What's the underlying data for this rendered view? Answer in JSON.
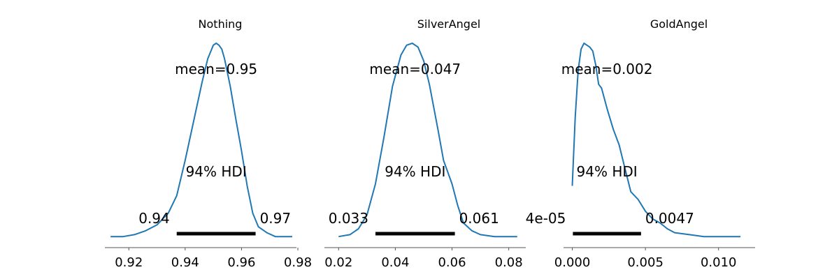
{
  "colors": {
    "curve": "#1f77b4",
    "hdi_bar": "#000000",
    "axis": "#555555"
  },
  "chart_data": [
    {
      "type": "line",
      "title": "Nothing",
      "mean_label": "mean=0.95",
      "hdi_label": "94% HDI",
      "hdi_low": 0.937,
      "hdi_high": 0.965,
      "hdi_low_label": "0.94",
      "hdi_high_label": "0.97",
      "xlim": [
        0.9115,
        0.9795
      ],
      "ticks": [
        0.92,
        0.94,
        0.96,
        0.98
      ],
      "tick_labels": [
        "0.92",
        "0.94",
        "0.96",
        "0.98"
      ],
      "density_x": [
        0.9135,
        0.918,
        0.922,
        0.926,
        0.93,
        0.934,
        0.937,
        0.94,
        0.943,
        0.946,
        0.948,
        0.95,
        0.951,
        0.952,
        0.953,
        0.954,
        0.956,
        0.958,
        0.96,
        0.962,
        0.964,
        0.966,
        0.969,
        0.972,
        0.975,
        0.978
      ],
      "density_y": [
        0.01,
        0.01,
        0.02,
        0.04,
        0.07,
        0.13,
        0.22,
        0.4,
        0.6,
        0.8,
        0.92,
        0.99,
        1.0,
        0.99,
        0.97,
        0.92,
        0.78,
        0.61,
        0.45,
        0.27,
        0.13,
        0.06,
        0.03,
        0.01,
        0.01,
        0.01
      ]
    },
    {
      "type": "line",
      "title": "SilverAngel",
      "mean_label": "mean=0.047",
      "hdi_label": "94% HDI",
      "hdi_low": 0.033,
      "hdi_high": 0.061,
      "hdi_low_label": "0.033",
      "hdi_high_label": "0.061",
      "xlim": [
        0.015,
        0.086
      ],
      "ticks": [
        0.02,
        0.04,
        0.06,
        0.08
      ],
      "tick_labels": [
        "0.02",
        "0.04",
        "0.06",
        "0.08"
      ],
      "density_x": [
        0.02,
        0.024,
        0.027,
        0.03,
        0.033,
        0.036,
        0.039,
        0.042,
        0.044,
        0.046,
        0.048,
        0.05,
        0.052,
        0.055,
        0.057,
        0.06,
        0.062,
        0.064,
        0.067,
        0.07,
        0.075,
        0.08,
        0.083
      ],
      "density_y": [
        0.01,
        0.02,
        0.05,
        0.12,
        0.28,
        0.52,
        0.78,
        0.94,
        0.99,
        1.0,
        0.98,
        0.91,
        0.79,
        0.56,
        0.4,
        0.28,
        0.17,
        0.08,
        0.04,
        0.02,
        0.01,
        0.01,
        0.01
      ]
    },
    {
      "type": "line",
      "title": "GoldAngel",
      "mean_label": "mean=0.002",
      "hdi_label": "94% HDI",
      "hdi_low": 4e-05,
      "hdi_high": 0.0047,
      "hdi_low_label": "4e-05",
      "hdi_high_label": "0.0047",
      "xlim": [
        -0.0006,
        0.0125
      ],
      "ticks": [
        0.0,
        0.005,
        0.01
      ],
      "tick_labels": [
        "0.000",
        "0.005",
        "0.010"
      ],
      "density_x": [
        0.0,
        0.0002,
        0.0004,
        0.0006,
        0.0008,
        0.001,
        0.0012,
        0.0014,
        0.0016,
        0.0018,
        0.002,
        0.0024,
        0.0028,
        0.0032,
        0.0036,
        0.004,
        0.0045,
        0.005,
        0.0055,
        0.006,
        0.0065,
        0.007,
        0.008,
        0.009,
        0.01,
        0.0115
      ],
      "density_y": [
        0.27,
        0.62,
        0.86,
        0.97,
        1.0,
        0.99,
        0.98,
        0.96,
        0.89,
        0.79,
        0.77,
        0.66,
        0.56,
        0.48,
        0.36,
        0.24,
        0.2,
        0.14,
        0.1,
        0.08,
        0.05,
        0.03,
        0.02,
        0.01,
        0.01,
        0.01
      ]
    }
  ]
}
